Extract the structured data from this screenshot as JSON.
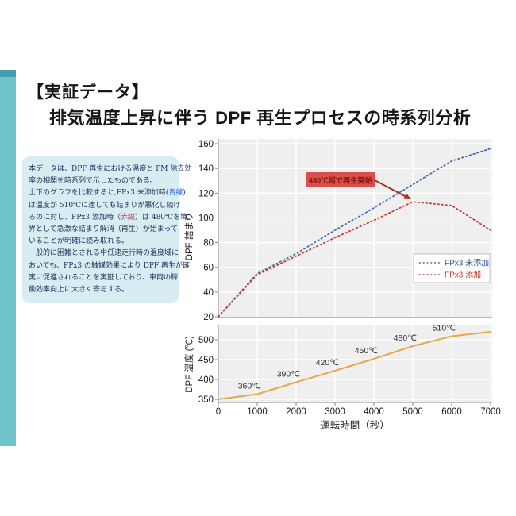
{
  "page": {
    "accent_bar_color": "#70c3cd",
    "accent_cap_color": "#459fae",
    "desc_bg": "#d8edf2",
    "desc_text_color": "#21325e"
  },
  "header": {
    "title_line1": "【実証データ】",
    "title_line2": "排気温度上昇に伴う DPF 再生プロセスの時系列分析"
  },
  "description": {
    "lines": [
      [
        {
          "t": "本データは、DPF 再生における温度と PM 除去効"
        }
      ],
      [
        {
          "t": "率の相関を時系列で示したものである。"
        }
      ],
      [
        {
          "t": "上下のグラフを比較すると,FPx3 未添加時("
        },
        {
          "t": "青線",
          "c": "#2f6bd8"
        },
        {
          "t": ")"
        }
      ],
      [
        {
          "t": "は温度が 510℃に達しても詰まりが悪化し続け"
        }
      ],
      [
        {
          "t": "るのに対し、FPx3 添加時（"
        },
        {
          "t": "赤線",
          "c": "#d03030"
        },
        {
          "t": "）は 480℃を境"
        }
      ],
      [
        {
          "t": "界として急激な詰まり解消（再生）が始まって"
        }
      ],
      [
        {
          "t": "いることが明確に読み取れる。"
        }
      ],
      [
        {
          "t": "一般的に困難とされる中低速走行時の温度域に"
        }
      ],
      [
        {
          "t": "おいても、FPx3 の触媒効果により DPF 再生が確"
        }
      ],
      [
        {
          "t": "実に促進されることを実証しており、車両の稼"
        }
      ],
      [
        {
          "t": "働効率向上に大きく寄与する。"
        }
      ]
    ]
  },
  "chart_style": {
    "plot_bg": "#efefef",
    "grid_color": "#ffffff",
    "axis_color": "#8a8a8a",
    "tick_text_color": "#1a1a1a"
  },
  "chart_data": [
    {
      "type": "line",
      "panel": "upper",
      "ylabel": "DPF 詰まり",
      "x": [
        0,
        1000,
        2000,
        3000,
        4000,
        5000,
        6000,
        7000
      ],
      "series": [
        {
          "name": "FPx3 未添加",
          "color": "#3f6cb4",
          "label_color": "#2f5496",
          "style": "dotted",
          "values": [
            20,
            55,
            71,
            90,
            108,
            127,
            146,
            156
          ]
        },
        {
          "name": "FPx3 添加",
          "color": "#c43a36",
          "label_color": "#c0392b",
          "style": "dotted",
          "values": [
            20,
            54,
            69,
            84,
            98,
            113,
            110,
            90
          ]
        }
      ],
      "ylim": [
        20,
        164
      ],
      "yticks": [
        20,
        40,
        60,
        80,
        100,
        120,
        140,
        160
      ],
      "grid": true,
      "legend": {
        "position": "middle-right",
        "bg": "#ffffff",
        "border": "#bfbfbf"
      },
      "annotation": {
        "text": "480℃超で再生開始",
        "bg": "#d94f4a",
        "text_color": "#8c1114",
        "arrow_color": "#ab2f2b",
        "arrow_to": {
          "x": 5000,
          "y": 113
        }
      }
    },
    {
      "type": "line",
      "panel": "lower",
      "ylabel": "DPF 温度 (℃)",
      "xlabel": "運転時間（秒）",
      "x": [
        0,
        1000,
        2000,
        3000,
        4000,
        5000,
        6000,
        7000
      ],
      "series": [
        {
          "name": "DPF 温度",
          "color": "#e4a94f",
          "style": "solid",
          "values": [
            350,
            363,
            393,
            422,
            452,
            484,
            509,
            520
          ]
        }
      ],
      "ylim": [
        342,
        536
      ],
      "yticks": [
        350,
        400,
        450,
        500
      ],
      "xticks": [
        0,
        1000,
        2000,
        3000,
        4000,
        5000,
        6000,
        7000
      ],
      "point_labels": [
        {
          "x": 1000,
          "label": "360℃"
        },
        {
          "x": 2000,
          "label": "390℃"
        },
        {
          "x": 3000,
          "label": "420℃"
        },
        {
          "x": 4000,
          "label": "450℃"
        },
        {
          "x": 5000,
          "label": "480℃"
        },
        {
          "x": 6000,
          "label": "510℃"
        }
      ],
      "grid": true
    }
  ]
}
